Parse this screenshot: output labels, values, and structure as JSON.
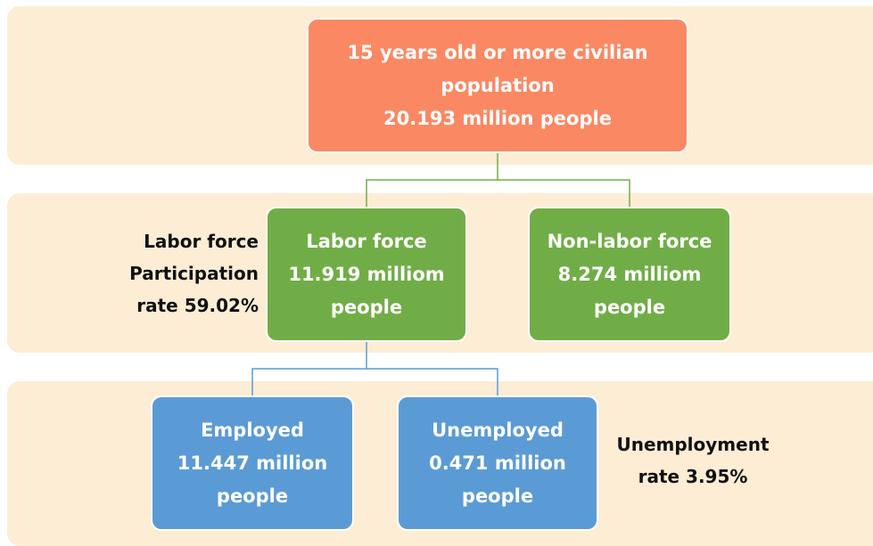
{
  "root": {
    "line1": "15 years old or more civilian",
    "line2": "population",
    "line3": "20.193 million people"
  },
  "labor_force": {
    "line1": "Labor force",
    "line2": "11.919 milliom",
    "line3": "people"
  },
  "non_labor_force": {
    "line1": "Non-labor force",
    "line2": "8.274 milliom",
    "line3": "people"
  },
  "employed": {
    "line1": "Employed",
    "line2": "11.447 million",
    "line3": "people"
  },
  "unemployed": {
    "line1": "Unemployed",
    "line2": "0.471 million",
    "line3": "people"
  },
  "participation_label": {
    "line1": "Labor force",
    "line2": "Participation",
    "line3": "rate 59.02%"
  },
  "unemployment_label": {
    "line1": "Unemployment",
    "line2": "rate 3.95%"
  },
  "colors": {
    "band": "#fcedd4",
    "orange": "#fa8863",
    "green": "#71ad47",
    "blue": "#5b9bd5",
    "green_connector": "#70ad47",
    "blue_connector": "#5b9bd5"
  }
}
